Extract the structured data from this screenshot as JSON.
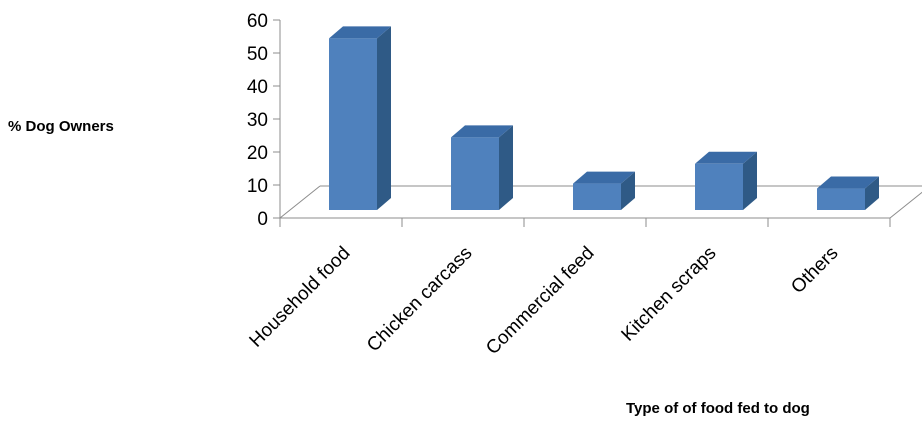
{
  "chart_data": {
    "type": "bar",
    "title": "",
    "ylabel": "% Dog Owners",
    "xlabel": "Type of of food fed to dog",
    "categories": [
      "Household food",
      "Chicken carcass",
      "Commercial feed",
      "Kitchen scraps",
      "Others"
    ],
    "values": [
      52,
      22,
      8,
      14,
      6.5
    ],
    "ylim": [
      0,
      60
    ],
    "yticks": [
      0,
      10,
      20,
      30,
      40,
      50,
      60
    ],
    "grid": false,
    "style": "3d-column",
    "colors": {
      "bar_front": "#4F81BD",
      "bar_side": "#2F5A86",
      "bar_top": "#3A6BA6",
      "floor": "#8C8C8C"
    }
  }
}
